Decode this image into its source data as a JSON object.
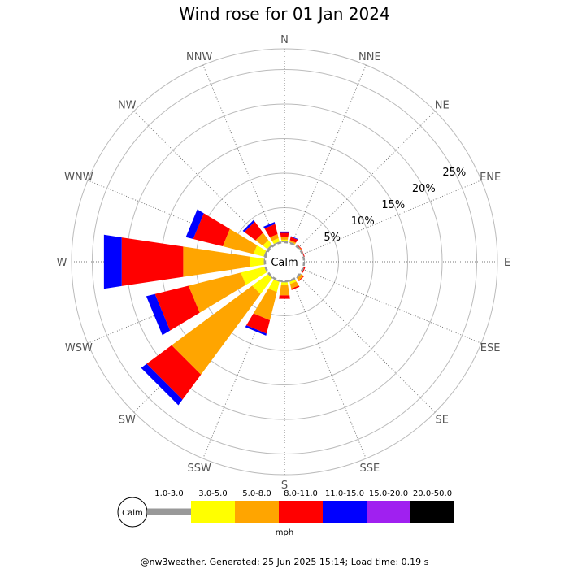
{
  "chart_data": {
    "type": "wind-rose",
    "title": "Wind rose for 01 Jan 2024",
    "directions": [
      "N",
      "NNE",
      "NE",
      "ENE",
      "E",
      "ESE",
      "SE",
      "SSE",
      "S",
      "SSW",
      "SW",
      "WSW",
      "W",
      "WNW",
      "NW",
      "NNW"
    ],
    "ring_labels": [
      "5%",
      "10%",
      "15%",
      "20%",
      "25%"
    ],
    "ring_values": [
      5,
      10,
      15,
      20,
      25
    ],
    "radial_max": 28,
    "calm_label": "Calm",
    "speed_bins": [
      "1.0-3.0",
      "3.0-5.0",
      "5.0-8.0",
      "8.0-11.0",
      "11.0-15.0",
      "15.0-20.0",
      "20.0-50.0"
    ],
    "bin_colors": [
      "#999999",
      "#ffff00",
      "#ffa500",
      "#ff0000",
      "#0000ff",
      "#a020f0",
      "#000000"
    ],
    "unit": "mph",
    "frequencies_percent": {
      "N": [
        0.2,
        0.2,
        0.4,
        0.6,
        0.2,
        0,
        0
      ],
      "NNE": [
        0.1,
        0.1,
        0.2,
        0.5,
        0.1,
        0,
        0
      ],
      "NE": [
        0.1,
        0,
        0.1,
        0.1,
        0,
        0,
        0
      ],
      "ENE": [
        0.1,
        0,
        0,
        0.1,
        0,
        0,
        0
      ],
      "E": [
        0.1,
        0,
        0,
        0,
        0,
        0,
        0
      ],
      "ESE": [
        0.1,
        0,
        0,
        0.2,
        0,
        0,
        0
      ],
      "SE": [
        0.2,
        0,
        0.4,
        0.1,
        0,
        0,
        0
      ],
      "SSE": [
        0.2,
        0.3,
        0.7,
        0.2,
        0,
        0,
        0
      ],
      "S": [
        0.2,
        0.3,
        1.6,
        0.5,
        0,
        0,
        0
      ],
      "SSW": [
        0.2,
        1.5,
        4.2,
        2.0,
        0.3,
        0,
        0
      ],
      "SW": [
        0.2,
        2.8,
        14.5,
        4.5,
        1.0,
        0,
        0
      ],
      "WSW": [
        0.2,
        3.5,
        7.8,
        5.0,
        1.3,
        0,
        0
      ],
      "W": [
        0.2,
        2.0,
        9.8,
        9.0,
        2.6,
        0,
        0
      ],
      "WNW": [
        0.3,
        1.5,
        4.6,
        4.4,
        1.1,
        0,
        0
      ],
      "NW": [
        0.3,
        0.8,
        1.3,
        2.0,
        0.3,
        0,
        0
      ],
      "NNW": [
        0.2,
        0.5,
        0.6,
        1.5,
        0.3,
        0,
        0
      ]
    }
  },
  "footer": "@nw3weather. Generated: 25 Jun 2025 15:14; Load time: 0.19 s"
}
